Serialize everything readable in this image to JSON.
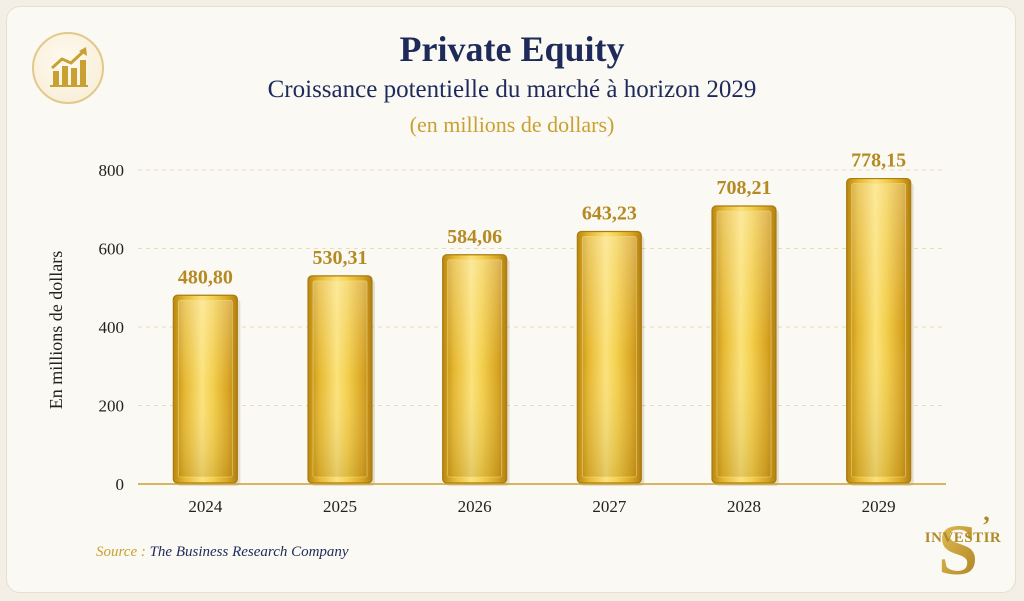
{
  "header": {
    "title": "Private Equity",
    "subtitle": "Croissance potentielle du marché à horizon 2029",
    "unit_note": "(en millions de dollars)"
  },
  "badge_icon": "growth-chart-icon",
  "source": {
    "label": "Source :",
    "text": "The Business Research Company"
  },
  "logo": {
    "letter": "S",
    "mark": "’",
    "word": "INVESTIR"
  },
  "colors": {
    "navy": "#1e2a5a",
    "gold": "#c9a032",
    "gold_light": "#f7dc6a",
    "gold_dark": "#c08f14"
  },
  "chart_data": {
    "type": "bar",
    "categories": [
      "2024",
      "2025",
      "2026",
      "2027",
      "2028",
      "2029"
    ],
    "values": [
      480.8,
      530.31,
      584.06,
      643.23,
      708.21,
      778.15
    ],
    "value_labels": [
      "480,80",
      "530,31",
      "584,06",
      "643,23",
      "708,21",
      "778,15"
    ],
    "ylabel": "En millions de dollars",
    "ylim": [
      0,
      800
    ],
    "yticks": [
      0,
      200,
      400,
      600,
      800
    ],
    "grid": "horizontal dashed",
    "legend": "none"
  }
}
